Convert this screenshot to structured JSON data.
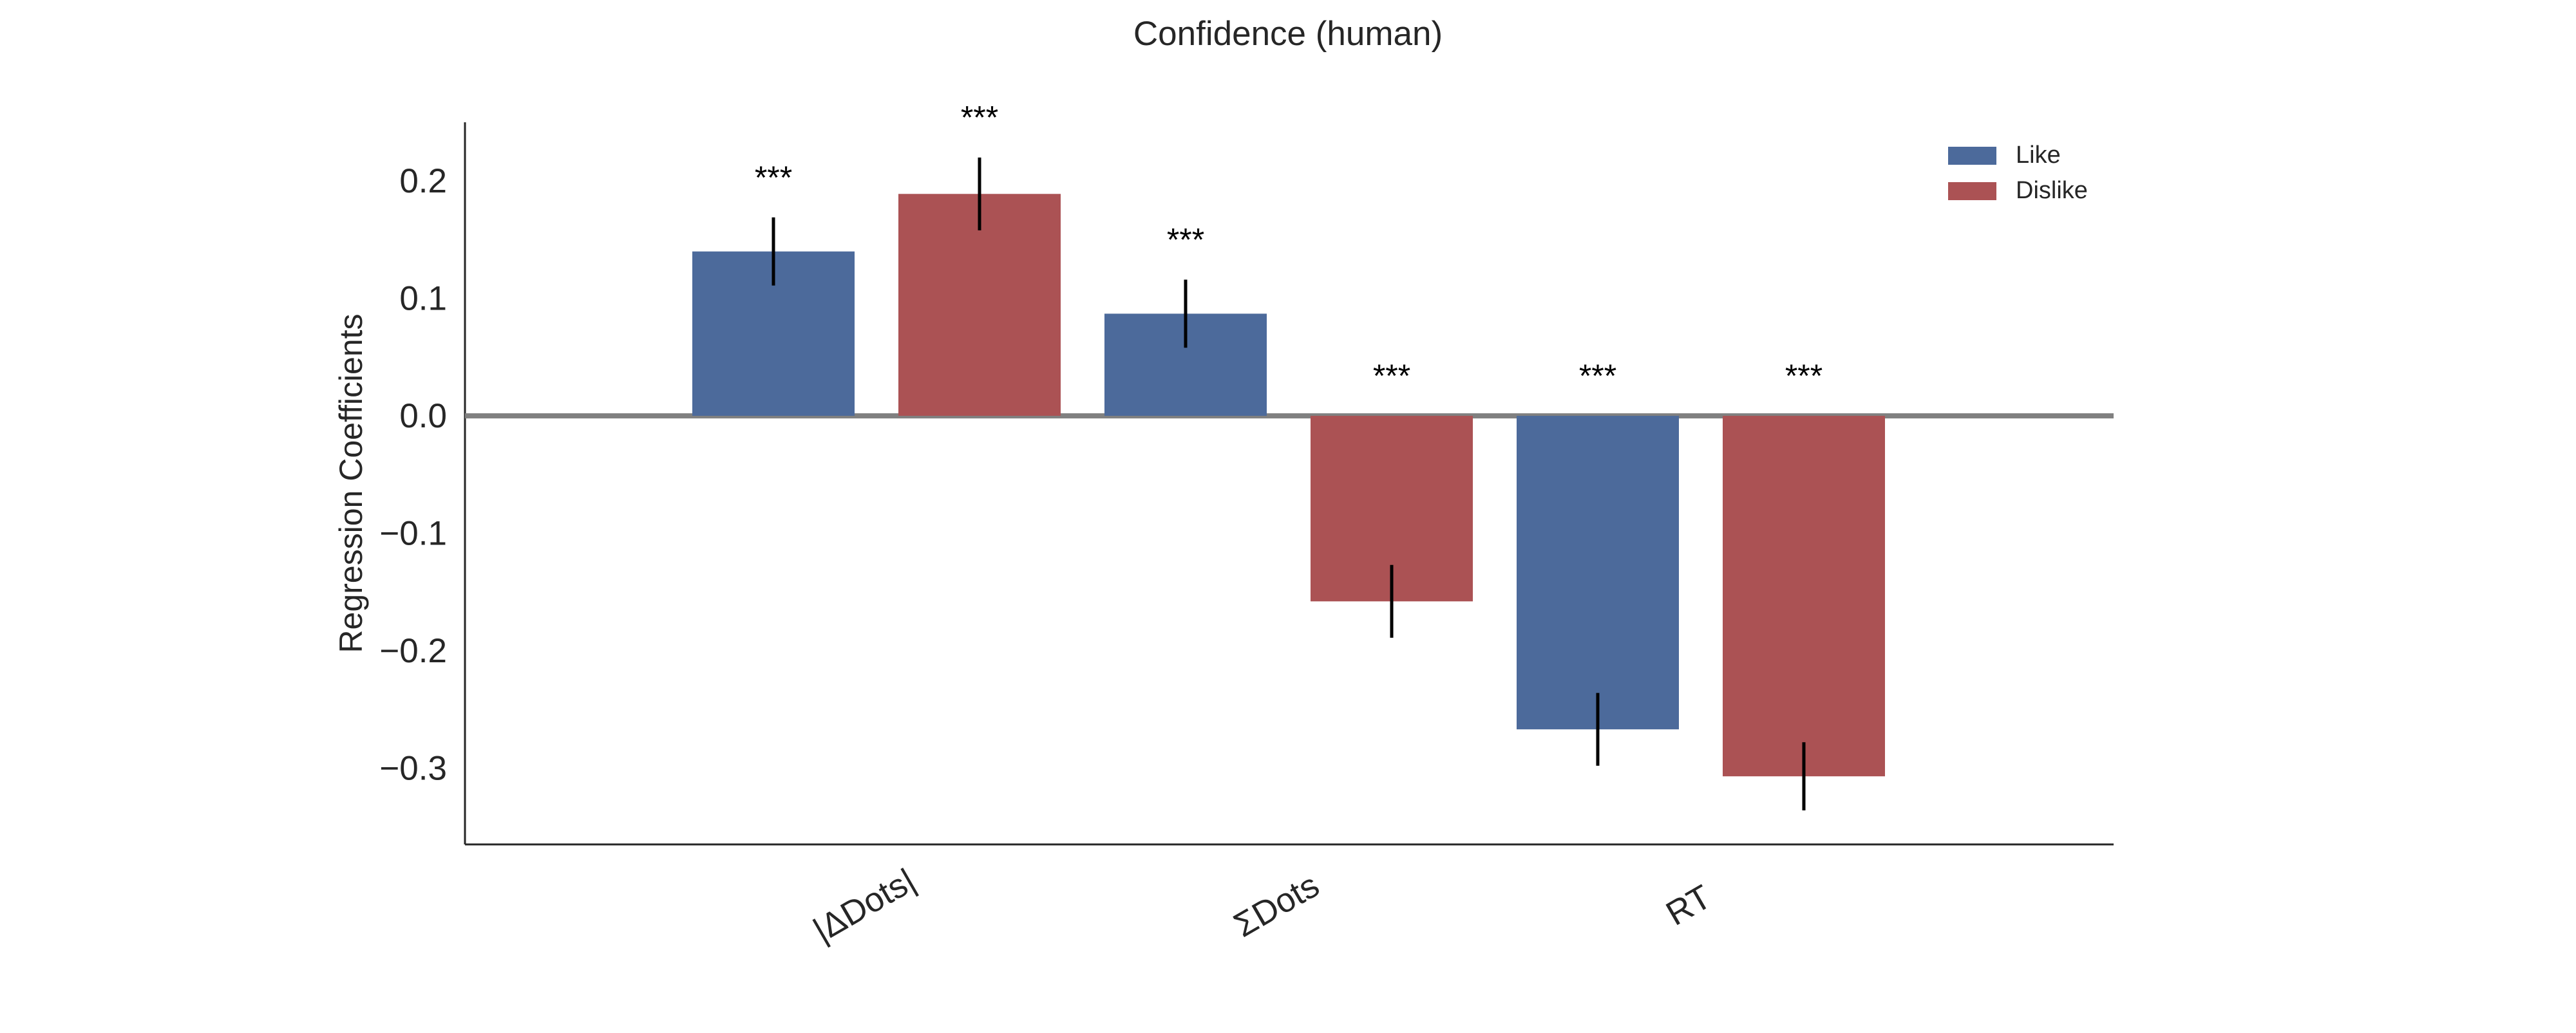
{
  "chart_data": {
    "type": "bar",
    "title": "Confidence (human)",
    "xlabel": "",
    "ylabel": "Regression Coefficients",
    "ylim": [
      -0.365,
      0.25
    ],
    "yticks": [
      0.2,
      0.1,
      0.0,
      -0.1,
      -0.2,
      -0.3
    ],
    "ytick_labels": [
      "0.2",
      "0.1",
      "0.0",
      "−0.1",
      "−0.2",
      "−0.3"
    ],
    "categories": [
      "|ΔDots|",
      "ΣDots",
      "RT"
    ],
    "series": [
      {
        "name": "Like",
        "color": "#4c6a9b",
        "values": [
          0.14,
          0.087,
          -0.267
        ],
        "errors": [
          0.029,
          0.029,
          0.031
        ],
        "significance": [
          "***",
          "***",
          "***"
        ]
      },
      {
        "name": "Dislike",
        "color": "#ab5254",
        "values": [
          0.189,
          -0.158,
          -0.307
        ],
        "errors": [
          0.031,
          0.031,
          0.029
        ],
        "significance": [
          "***",
          "***",
          "***"
        ]
      }
    ],
    "bar_order": [
      {
        "category": 0,
        "series": 0
      },
      {
        "category": 0,
        "series": 1
      },
      {
        "category": 1,
        "series": 0
      },
      {
        "category": 1,
        "series": 1
      },
      {
        "category": 2,
        "series": 0
      },
      {
        "category": 2,
        "series": 1
      }
    ],
    "zero_line_color": "#808080",
    "grid": false,
    "legend_position": "top-right"
  }
}
